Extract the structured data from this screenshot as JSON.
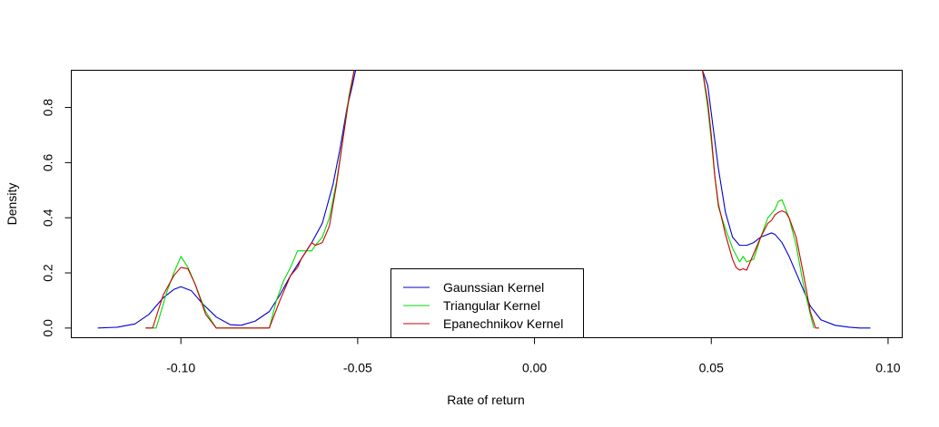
{
  "chart_data": {
    "type": "line",
    "title": "",
    "xlabel": "Rate of return",
    "ylabel": "Density",
    "xlim": [
      -0.131,
      0.104
    ],
    "ylim": [
      -0.035,
      0.935
    ],
    "x_ticks": [
      -0.1,
      -0.05,
      0.0,
      0.05,
      0.1
    ],
    "x_tick_labels": [
      "-0.10",
      "-0.05",
      "0.00",
      "0.05",
      "0.10"
    ],
    "y_ticks": [
      0.0,
      0.2,
      0.4,
      0.6,
      0.8
    ],
    "y_tick_labels": [
      "0.0",
      "0.2",
      "0.4",
      "0.6",
      "0.8"
    ],
    "grid": false,
    "legend_position": "bottom-center",
    "series": [
      {
        "name": "Gaunssian Kernel",
        "color": "#0000CC",
        "x": [
          -0.1235,
          -0.118,
          -0.113,
          -0.109,
          -0.105,
          -0.102,
          -0.1,
          -0.097,
          -0.094,
          -0.09,
          -0.086,
          -0.083,
          -0.079,
          -0.075,
          -0.072,
          -0.069,
          -0.066,
          -0.063,
          -0.06,
          -0.057,
          -0.055,
          -0.053,
          -0.0515,
          -0.0506,
          "gap",
          0.0475,
          0.049,
          0.05,
          0.052,
          0.054,
          0.056,
          0.058,
          0.06,
          0.062,
          0.064,
          0.066,
          0.067,
          0.068,
          0.07,
          0.072,
          0.074,
          0.076,
          0.078,
          0.081,
          0.085,
          0.089,
          0.092,
          0.095
        ],
        "y": [
          0.0,
          0.003,
          0.015,
          0.05,
          0.11,
          0.14,
          0.15,
          0.135,
          0.09,
          0.04,
          0.012,
          0.01,
          0.025,
          0.06,
          0.12,
          0.19,
          0.25,
          0.31,
          0.38,
          0.52,
          0.65,
          0.8,
          0.88,
          0.935,
          "gap",
          0.935,
          0.88,
          0.78,
          0.58,
          0.42,
          0.33,
          0.3,
          0.3,
          0.31,
          0.33,
          0.34,
          0.345,
          0.34,
          0.31,
          0.26,
          0.2,
          0.14,
          0.08,
          0.03,
          0.01,
          0.003,
          0.0,
          0.0
        ]
      },
      {
        "name": "Triangular Kernel",
        "color": "#00DD00",
        "x": [
          -0.11,
          -0.107,
          -0.104,
          -0.102,
          -0.1,
          -0.098,
          -0.096,
          -0.093,
          -0.09,
          -0.087,
          -0.081,
          -0.078,
          -0.075,
          -0.073,
          -0.071,
          -0.069,
          -0.067,
          -0.066,
          -0.065,
          -0.063,
          -0.062,
          -0.06,
          -0.058,
          -0.056,
          -0.054,
          -0.0525,
          -0.051,
          "gap",
          0.0475,
          0.049,
          0.05,
          0.051,
          0.052,
          0.054,
          0.056,
          0.058,
          0.059,
          0.06,
          0.062,
          0.064,
          0.066,
          0.068,
          0.069,
          0.07,
          0.072,
          0.074,
          0.076,
          0.078,
          0.079
        ],
        "y": [
          0.0,
          0.0,
          0.13,
          0.2,
          0.26,
          0.22,
          0.16,
          0.06,
          0.0,
          0.0,
          0.0,
          0.0,
          0.0,
          0.1,
          0.17,
          0.22,
          0.28,
          0.28,
          0.28,
          0.28,
          0.3,
          0.33,
          0.4,
          0.53,
          0.7,
          0.84,
          0.935,
          "gap",
          0.935,
          0.8,
          0.68,
          0.55,
          0.44,
          0.36,
          0.29,
          0.24,
          0.26,
          0.24,
          0.25,
          0.33,
          0.4,
          0.43,
          0.46,
          0.465,
          0.4,
          0.3,
          0.16,
          0.05,
          0.0
        ]
      },
      {
        "name": "Epanechnikov Kernel",
        "color": "#CC0000",
        "x": [
          -0.11,
          -0.108,
          -0.105,
          -0.102,
          -0.1,
          -0.098,
          -0.096,
          -0.093,
          -0.09,
          -0.087,
          -0.081,
          -0.078,
          -0.075,
          -0.072,
          -0.069,
          -0.067,
          -0.066,
          -0.064,
          -0.063,
          -0.062,
          -0.06,
          -0.058,
          -0.056,
          -0.054,
          -0.0525,
          -0.051,
          "gap",
          0.0475,
          0.049,
          0.05,
          0.051,
          0.052,
          0.054,
          0.056,
          0.057,
          0.058,
          0.059,
          0.06,
          0.062,
          0.064,
          0.066,
          0.067,
          0.068,
          0.069,
          0.07,
          0.071,
          0.072,
          0.074,
          0.076,
          0.078,
          0.0795,
          0.0805
        ],
        "y": [
          0.0,
          0.0,
          0.12,
          0.19,
          0.22,
          0.215,
          0.16,
          0.05,
          0.0,
          0.0,
          0.0,
          0.0,
          0.0,
          0.1,
          0.19,
          0.22,
          0.25,
          0.29,
          0.31,
          0.3,
          0.31,
          0.37,
          0.52,
          0.7,
          0.83,
          0.935,
          "gap",
          0.935,
          0.82,
          0.7,
          0.55,
          0.45,
          0.34,
          0.25,
          0.22,
          0.21,
          0.215,
          0.21,
          0.27,
          0.33,
          0.38,
          0.39,
          0.41,
          0.42,
          0.425,
          0.42,
          0.4,
          0.33,
          0.2,
          0.06,
          0.0,
          0.0
        ]
      }
    ]
  }
}
